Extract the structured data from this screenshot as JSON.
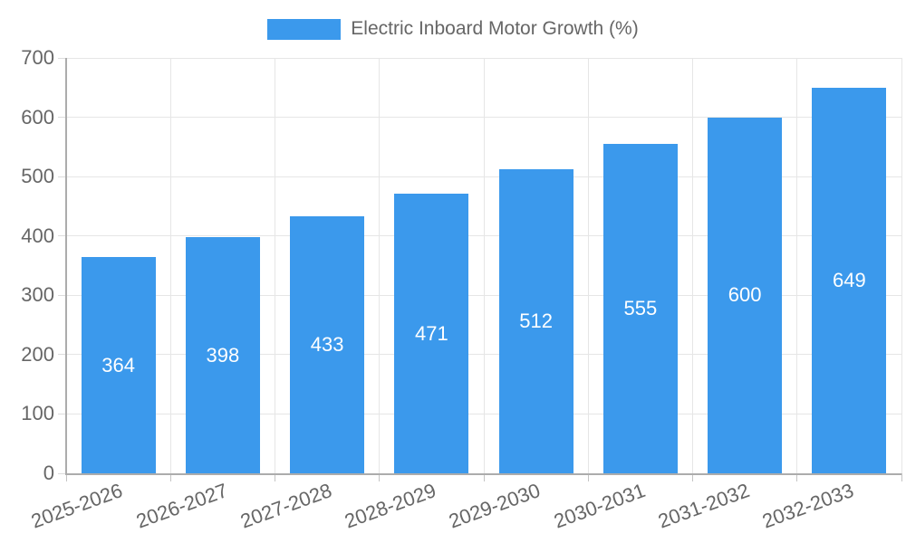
{
  "legend": {
    "label": "Electric Inboard Motor Growth (%)",
    "position": "top"
  },
  "colors": {
    "bar": "#3B99EC",
    "grid": "#E6E6E6",
    "axis": "#ACACAC",
    "tick_text": "#666666",
    "value_text": "#FFFFFF"
  },
  "chart_data": {
    "type": "bar",
    "title": "Electric Inboard Motor Growth (%)",
    "categories": [
      "2025-2026",
      "2026-2027",
      "2027-2028",
      "2028-2029",
      "2029-2030",
      "2030-2031",
      "2031-2032",
      "2032-2033"
    ],
    "values": [
      364,
      398,
      433,
      471,
      512,
      555,
      600,
      649
    ],
    "xlabel": "",
    "ylabel": "",
    "ylim": [
      0,
      700
    ],
    "yticks": [
      0,
      100,
      200,
      300,
      400,
      500,
      600,
      700
    ],
    "grid": true,
    "legend_position": "top",
    "bar_color": "#3B99EC",
    "value_label_position": "inside-center",
    "x_tick_rotation_deg": -20
  }
}
